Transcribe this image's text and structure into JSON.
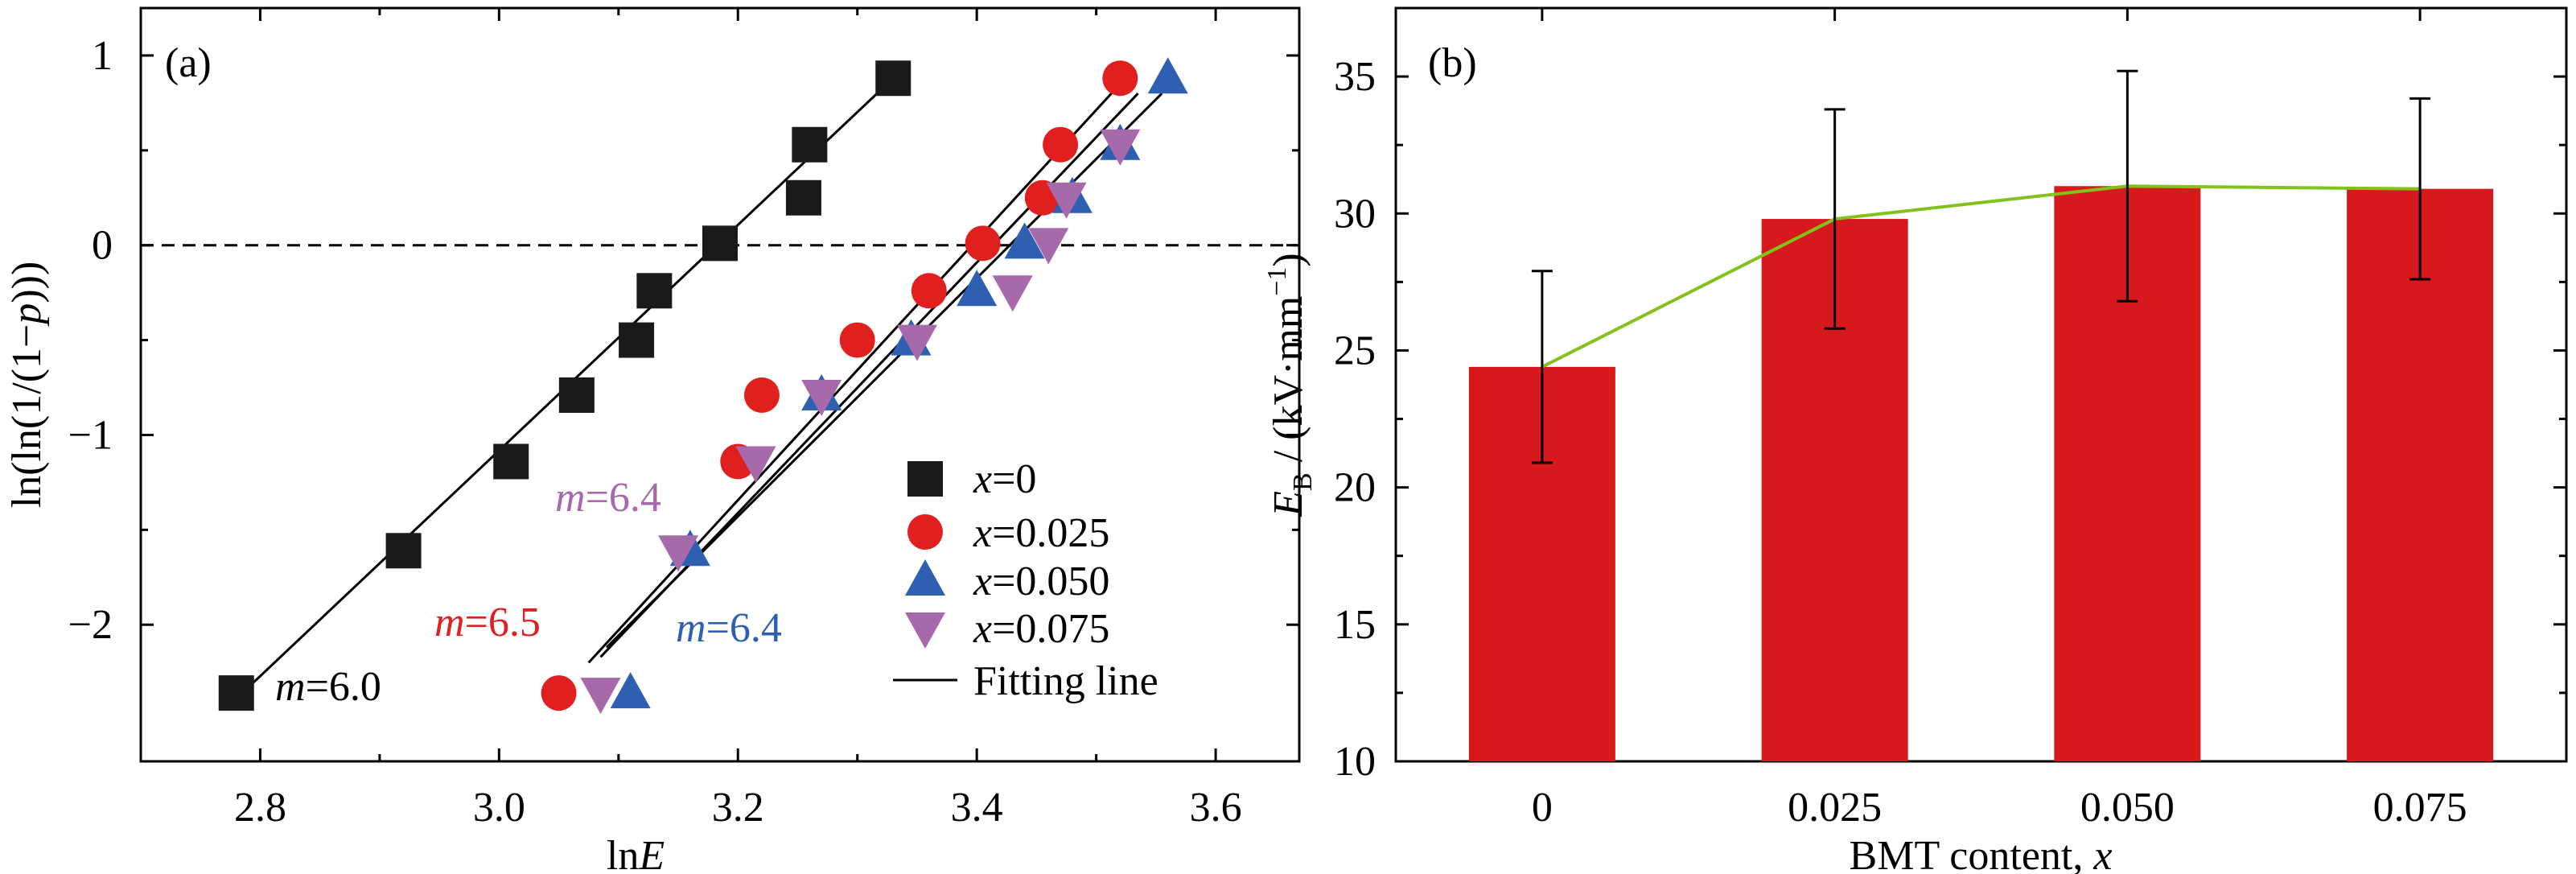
{
  "colors": {
    "x0": "#1a1a1a",
    "x025": "#e0201e",
    "x050": "#2f5fb0",
    "x075": "#a66aaa",
    "bar": "#d7181c",
    "trend": "#82c21a",
    "fit": "#000000"
  },
  "chart_data": [
    {
      "type": "scatter",
      "panel_label": "(a)",
      "xlabel_prefix": "ln",
      "xlabel_var": "E",
      "ylabel_parts": [
        "ln(ln(1/(1−",
        "p",
        ")))"
      ],
      "xlim": [
        2.7,
        3.67
      ],
      "ylim": [
        -2.72,
        1.25
      ],
      "xticks": [
        2.8,
        3.0,
        3.2,
        3.4,
        3.6
      ],
      "xtick_labels": [
        "2.8",
        "3.0",
        "3.2",
        "3.4",
        "3.6"
      ],
      "yticks": [
        -2,
        -1,
        0,
        1
      ],
      "ytick_labels": [
        "−2",
        "−1",
        "0",
        "1"
      ],
      "reference_line": {
        "y": 0,
        "style": "dashed"
      },
      "legend_position": "bottom-right",
      "legend_fit_label": "Fitting line",
      "series": [
        {
          "name": "x=0",
          "name_var": "x",
          "name_val": "=0",
          "marker": "square",
          "color_key": "x0",
          "x": [
            2.78,
            2.92,
            3.01,
            3.065,
            3.115,
            3.13,
            3.185,
            3.255,
            3.26,
            3.33
          ],
          "y": [
            -2.36,
            -1.61,
            -1.14,
            -0.79,
            -0.5,
            -0.24,
            0.01,
            0.25,
            0.53,
            0.88
          ],
          "fit": {
            "x": [
              2.785,
              3.33
            ],
            "y": [
              -2.36,
              0.88
            ]
          },
          "m_label": {
            "prefix": "m",
            "value": "=6.0"
          }
        },
        {
          "name": "x=0.025",
          "name_var": "x",
          "name_val": "=0.025",
          "marker": "circle",
          "color_key": "x025",
          "x": [
            3.05,
            3.2,
            3.22,
            3.3,
            3.36,
            3.405,
            3.455,
            3.47,
            3.52
          ],
          "y": [
            -2.36,
            -1.14,
            -0.79,
            -0.5,
            -0.24,
            0.01,
            0.25,
            0.53,
            0.88
          ],
          "fit": {
            "x": [
              3.075,
              3.52
            ],
            "y": [
              -2.2,
              0.85
            ]
          },
          "m_label": {
            "prefix": "m",
            "value": "=6.5"
          }
        },
        {
          "name": "x=0.050",
          "name_var": "x",
          "name_val": "=0.050",
          "marker": "triangle-up",
          "color_key": "x050",
          "x": [
            3.11,
            3.16,
            3.27,
            3.345,
            3.4,
            3.44,
            3.48,
            3.52,
            3.56
          ],
          "y": [
            -2.36,
            -1.61,
            -0.79,
            -0.5,
            -0.24,
            0.01,
            0.25,
            0.53,
            0.88
          ],
          "fit": {
            "x": [
              3.09,
              3.555
            ],
            "y": [
              -2.12,
              0.8
            ]
          },
          "m_label": {
            "prefix": "m",
            "value": "=6.4"
          }
        },
        {
          "name": "x=0.075",
          "name_var": "x",
          "name_val": "=0.075",
          "marker": "triangle-down",
          "color_key": "x075",
          "x": [
            3.085,
            3.15,
            3.215,
            3.27,
            3.35,
            3.43,
            3.46,
            3.475,
            3.52
          ],
          "y": [
            -2.36,
            -1.61,
            -1.14,
            -0.79,
            -0.5,
            -0.24,
            0.01,
            0.25,
            0.53
          ],
          "fit": {
            "x": [
              3.085,
              3.535
            ],
            "y": [
              -2.17,
              0.8
            ]
          },
          "m_label": {
            "prefix": "m",
            "value": "=6.4"
          }
        }
      ]
    },
    {
      "type": "bar",
      "panel_label": "(b)",
      "categories": [
        "0",
        "0.025",
        "0.050",
        "0.075"
      ],
      "values": [
        24.4,
        29.8,
        31.0,
        30.9
      ],
      "error": [
        3.5,
        4.0,
        4.2,
        3.3
      ],
      "trend_line": [
        24.4,
        29.8,
        31.0,
        30.9
      ],
      "xlabel_prefix": "BMT content, ",
      "xlabel_var": "x",
      "ylabel_var": "E",
      "ylabel_sub": "B",
      "ylabel_rest": " / (kV·mm",
      "ylabel_sup": "−1",
      "ylabel_close": ")",
      "ylim": [
        10,
        37.5
      ],
      "yticks": [
        10,
        15,
        20,
        25,
        30,
        35
      ],
      "ytick_labels": [
        "10",
        "15",
        "20",
        "25",
        "30",
        "35"
      ]
    }
  ]
}
